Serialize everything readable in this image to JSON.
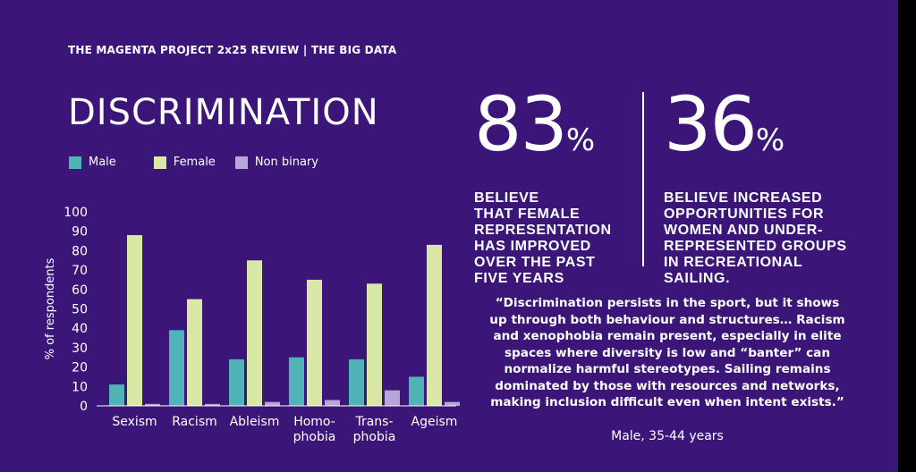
{
  "header": {
    "text": "THE MAGENTA PROJECT 2x25 REVIEW | THE BIG DATA"
  },
  "title": "DISCRIMINATION",
  "colors": {
    "background": "#3b1678",
    "male": "#4fb3b8",
    "female": "#d9e8a6",
    "nonbinary": "#b8a6d9"
  },
  "chart_data": {
    "type": "bar",
    "ylabel": "% of respondents",
    "ylim": [
      0,
      100
    ],
    "yticks": [
      0,
      10,
      20,
      30,
      40,
      50,
      60,
      70,
      80,
      90,
      100
    ],
    "categories": [
      [
        "Sexism"
      ],
      [
        "Racism"
      ],
      [
        "Ableism"
      ],
      [
        "Homo-",
        "phobia"
      ],
      [
        "Trans-",
        "phobia"
      ],
      [
        "Ageism"
      ]
    ],
    "series": [
      {
        "name": "Male",
        "color": "#4fb3b8",
        "values": [
          11,
          39,
          24,
          25,
          24,
          15
        ]
      },
      {
        "name": "Female",
        "color": "#d9e8a6",
        "values": [
          88,
          55,
          75,
          65,
          63,
          83
        ]
      },
      {
        "name": "Non binary",
        "color": "#b8a6d9",
        "values": [
          1,
          1,
          2,
          3,
          8,
          2
        ]
      }
    ]
  },
  "stats": [
    {
      "number": "83",
      "unit": "%",
      "lines": [
        "BELIEVE",
        "THAT FEMALE",
        "REPRESENTATION",
        "HAS IMPROVED",
        "OVER THE PAST",
        "FIVE YEARS"
      ]
    },
    {
      "number": "36",
      "unit": "%",
      "lines": [
        "BELIEVE INCREASED",
        "OPPORTUNITIES FOR",
        "WOMEN AND UNDER-",
        "REPRESENTED GROUPS",
        "IN RECREATIONAL",
        "SAILING."
      ]
    }
  ],
  "quote": {
    "lines": [
      "“Discrimination persists in the sport, but it shows",
      "up through both behaviour and structures… Racism",
      "and xenophobia remain present, especially in elite",
      "spaces where diversity is low and “banter” can",
      "normalize harmful stereotypes. Sailing remains",
      "dominated by those with resources and networks,",
      "making inclusion difficult even when intent exists.”"
    ],
    "attribution": "Male, 35-44 years"
  }
}
